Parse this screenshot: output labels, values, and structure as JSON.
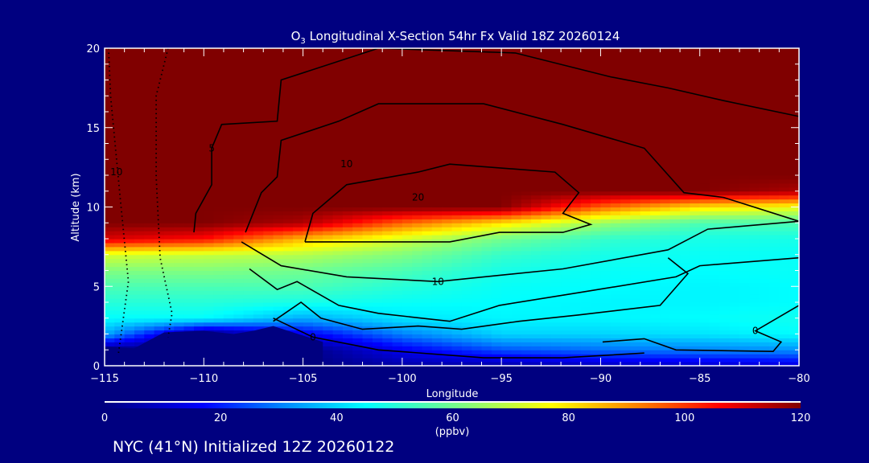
{
  "chart_data": {
    "type": "heatmap",
    "title": "O3 Longitudinal X-Section 54hr  Fx Valid 18Z 20260124",
    "title_parts": {
      "pre": "O",
      "sub": "3",
      "post": " Longitudinal X-Section 54hr  Fx Valid 18Z 20260124"
    },
    "xlabel": "Longitude",
    "ylabel": "Altitude (km)",
    "xlim": [
      -115,
      -80
    ],
    "ylim": [
      0,
      20
    ],
    "xticks": [
      -115,
      -110,
      -105,
      -100,
      -95,
      -90,
      -85,
      -80
    ],
    "xtick_labels": [
      "−115",
      "−110",
      "−105",
      "−100",
      "−95",
      "−90",
      "−85",
      "−80"
    ],
    "yticks": [
      0,
      5,
      10,
      15,
      20
    ],
    "ytick_labels": [
      "0",
      "5",
      "10",
      "15",
      "20"
    ],
    "colorbar": {
      "range": [
        0,
        120
      ],
      "ticks": [
        "0",
        "20",
        "40",
        "60",
        "80",
        "100",
        "120"
      ],
      "unit_label": "(ppbv)",
      "stops": [
        [
          0,
          "#000080"
        ],
        [
          17,
          "#0000ff"
        ],
        [
          30,
          "#0080ff"
        ],
        [
          45,
          "#00ffff"
        ],
        [
          62,
          "#80ff80"
        ],
        [
          77,
          "#ffff00"
        ],
        [
          92,
          "#ff8000"
        ],
        [
          106,
          "#ff0000"
        ],
        [
          120,
          "#800000"
        ]
      ]
    },
    "grid_lons": [
      -115,
      -110,
      -105,
      -100,
      -95,
      -90,
      -85,
      -80
    ],
    "grid_alts": [
      0,
      1,
      2,
      3,
      4,
      5,
      6,
      7,
      8,
      9,
      10,
      11,
      12,
      13,
      14,
      15,
      16,
      17,
      18,
      19,
      20
    ],
    "ozone_ppbv": [
      [
        0,
        0,
        35,
        45,
        50,
        55,
        62,
        72,
        110,
        120,
        120,
        120,
        120,
        120,
        120,
        120,
        120,
        120,
        120,
        120,
        120
      ],
      [
        0,
        0,
        0,
        45,
        50,
        55,
        62,
        70,
        105,
        120,
        120,
        120,
        120,
        120,
        120,
        120,
        120,
        120,
        120,
        120,
        120
      ],
      [
        0,
        0,
        15,
        35,
        48,
        55,
        60,
        68,
        85,
        115,
        120,
        120,
        120,
        120,
        120,
        120,
        120,
        120,
        120,
        120,
        120
      ],
      [
        5,
        15,
        30,
        42,
        46,
        50,
        55,
        62,
        72,
        95,
        120,
        120,
        120,
        120,
        120,
        120,
        120,
        120,
        120,
        120,
        120
      ],
      [
        5,
        25,
        40,
        44,
        45,
        46,
        48,
        52,
        60,
        80,
        120,
        120,
        120,
        120,
        120,
        120,
        120,
        120,
        120,
        120,
        120
      ],
      [
        8,
        28,
        40,
        44,
        44,
        45,
        46,
        48,
        52,
        65,
        95,
        120,
        120,
        120,
        120,
        120,
        120,
        120,
        120,
        120,
        120
      ],
      [
        10,
        30,
        42,
        45,
        44,
        44,
        45,
        46,
        48,
        55,
        80,
        120,
        120,
        120,
        120,
        120,
        120,
        120,
        120,
        120,
        120
      ],
      [
        12,
        32,
        45,
        47,
        45,
        45,
        46,
        46,
        48,
        55,
        75,
        115,
        120,
        120,
        120,
        120,
        120,
        120,
        120,
        120,
        120
      ]
    ],
    "terrain": [
      [
        -115,
        1.2
      ],
      [
        -113.5,
        1.1
      ],
      [
        -112,
        2.1
      ],
      [
        -110,
        2.2
      ],
      [
        -108.5,
        2.0
      ],
      [
        -107.5,
        2.2
      ],
      [
        -106.5,
        2.5
      ],
      [
        -105.5,
        2.1
      ],
      [
        -104,
        1.5
      ]
    ],
    "contours": [
      {
        "label": "5",
        "style": "solid",
        "label_at": [
          -109.6,
          13.7
        ],
        "points": [
          [
            -110.5,
            8.4
          ],
          [
            -110.4,
            9.6
          ],
          [
            -109.6,
            11.4
          ],
          [
            -109.6,
            13.7
          ],
          [
            -109.1,
            15.2
          ],
          [
            -106.3,
            15.4
          ],
          [
            -106.1,
            18.0
          ],
          [
            -101.2,
            20.0
          ],
          [
            -94.3,
            19.7
          ],
          [
            -89.5,
            18.2
          ],
          [
            -86.6,
            17.5
          ],
          [
            -83.8,
            16.7
          ],
          [
            -80.0,
            15.7
          ]
        ]
      },
      {
        "label": "10",
        "style": "solid",
        "label_at": [
          -102.8,
          12.7
        ],
        "points": [
          [
            -107.9,
            8.4
          ],
          [
            -107.1,
            10.9
          ],
          [
            -106.3,
            11.9
          ],
          [
            -106.1,
            14.2
          ],
          [
            -103.2,
            15.4
          ],
          [
            -101.2,
            16.5
          ],
          [
            -95.9,
            16.5
          ],
          [
            -91.9,
            15.2
          ],
          [
            -87.8,
            13.7
          ],
          [
            -85.8,
            10.9
          ],
          [
            -83.8,
            10.6
          ],
          [
            -80.0,
            9.1
          ]
        ]
      },
      {
        "label": "20",
        "style": "solid",
        "label_at": [
          -99.2,
          10.6
        ],
        "points": [
          [
            -104.9,
            7.8
          ],
          [
            -104.5,
            9.6
          ],
          [
            -102.8,
            11.4
          ],
          [
            -99.2,
            12.2
          ],
          [
            -97.6,
            12.7
          ],
          [
            -92.3,
            12.2
          ],
          [
            -91.1,
            10.9
          ],
          [
            -91.9,
            9.6
          ],
          [
            -90.5,
            8.9
          ],
          [
            -91.9,
            8.4
          ],
          [
            -95.1,
            8.4
          ],
          [
            -97.6,
            7.8
          ],
          [
            -100.8,
            7.8
          ],
          [
            -104.9,
            7.8
          ]
        ]
      },
      {
        "label": "10",
        "style": "solid",
        "label_at": [
          -98.2,
          5.3
        ],
        "points": [
          [
            -108.1,
            7.8
          ],
          [
            -106.1,
            6.3
          ],
          [
            -102.8,
            5.6
          ],
          [
            -98.2,
            5.3
          ],
          [
            -91.9,
            6.1
          ],
          [
            -86.6,
            7.3
          ],
          [
            -84.6,
            8.6
          ],
          [
            -80.0,
            9.1
          ]
        ]
      },
      {
        "label": "",
        "style": "solid",
        "label_at": null,
        "points": [
          [
            -107.7,
            6.1
          ],
          [
            -106.3,
            4.8
          ],
          [
            -105.3,
            5.3
          ],
          [
            -103.2,
            3.8
          ],
          [
            -101.2,
            3.3
          ],
          [
            -97.6,
            2.8
          ],
          [
            -95.1,
            3.8
          ],
          [
            -91.1,
            4.6
          ],
          [
            -86.2,
            5.6
          ],
          [
            -85.0,
            6.3
          ],
          [
            -80.0,
            6.8
          ]
        ]
      },
      {
        "label": "",
        "style": "solid",
        "label_at": null,
        "points": [
          [
            -106.5,
            2.8
          ],
          [
            -105.1,
            4.0
          ],
          [
            -104.1,
            3.0
          ],
          [
            -102.0,
            2.3
          ],
          [
            -99.2,
            2.5
          ],
          [
            -97.0,
            2.3
          ],
          [
            -94.1,
            2.8
          ],
          [
            -91.1,
            3.2
          ],
          [
            -87.0,
            3.8
          ],
          [
            -85.6,
            5.8
          ],
          [
            -86.6,
            6.8
          ]
        ]
      },
      {
        "label": "0",
        "style": "solid",
        "label_at": [
          -104.5,
          1.8
        ],
        "points": [
          [
            -106.5,
            3.0
          ],
          [
            -104.5,
            1.8
          ],
          [
            -101.2,
            1.0
          ],
          [
            -95.9,
            0.5
          ],
          [
            -91.9,
            0.5
          ],
          [
            -87.8,
            0.8
          ]
        ]
      },
      {
        "label": "0",
        "style": "solid",
        "label_at": [
          -82.2,
          2.2
        ],
        "points": [
          [
            -89.9,
            1.5
          ],
          [
            -87.8,
            1.7
          ],
          [
            -86.2,
            1.0
          ],
          [
            -81.3,
            0.9
          ],
          [
            -80.9,
            1.5
          ],
          [
            -82.2,
            2.2
          ],
          [
            -80.0,
            3.8
          ]
        ]
      },
      {
        "label": "10",
        "style": "dotted",
        "label_at": [
          -114.4,
          12.2
        ],
        "points": [
          [
            -114.8,
            20.0
          ],
          [
            -114.7,
            17.0
          ],
          [
            -114.2,
            10.4
          ],
          [
            -113.8,
            5.3
          ],
          [
            -114.3,
            0.8
          ]
        ]
      },
      {
        "label": "",
        "style": "dotted",
        "label_at": null,
        "points": [
          [
            -111.8,
            20.0
          ],
          [
            -112.4,
            17.0
          ],
          [
            -112.4,
            11.9
          ],
          [
            -112.2,
            6.8
          ],
          [
            -111.6,
            3.3
          ],
          [
            -111.8,
            1.8
          ]
        ]
      }
    ]
  },
  "footer": {
    "text": "NYC (41°N) Initialized 12Z 20260122"
  },
  "colors": {
    "background": "#000080",
    "terrain": "#000080",
    "axis": "#ffffff",
    "contour": "#000000"
  }
}
